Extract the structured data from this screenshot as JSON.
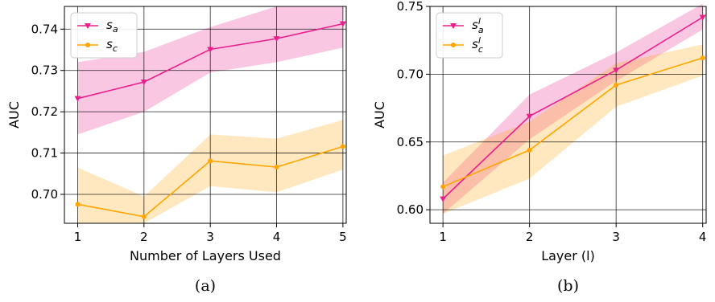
{
  "chart_data": [
    {
      "type": "line",
      "caption": "(a)",
      "xlabel": "Number of Layers Used",
      "ylabel": "AUC",
      "x": [
        1,
        2,
        3,
        4,
        5
      ],
      "xticks": [
        "1",
        "2",
        "3",
        "4",
        "5"
      ],
      "yticks": [
        "0.70",
        "0.71",
        "0.72",
        "0.73",
        "0.74"
      ],
      "xlim": [
        0.8,
        5.05
      ],
      "ylim": [
        0.693,
        0.7455
      ],
      "grid": true,
      "legend_position": "top-left",
      "series": [
        {
          "name": "s_a",
          "name_base": "s",
          "name_sub": "a",
          "name_sup": "",
          "color": "#e91e8c",
          "marker": "triangle-down",
          "values": [
            0.7232,
            0.7272,
            0.7351,
            0.7377,
            0.7413
          ],
          "band_low": [
            0.7145,
            0.72,
            0.7295,
            0.732,
            0.7355
          ],
          "band_high": [
            0.732,
            0.7345,
            0.7405,
            0.7455,
            0.7455
          ]
        },
        {
          "name": "s_c",
          "name_base": "s",
          "name_sub": "c",
          "name_sup": "",
          "color": "#ffa500",
          "marker": "circle",
          "values": [
            0.6976,
            0.6946,
            0.7081,
            0.7066,
            0.7116
          ],
          "band_low": [
            0.693,
            0.693,
            0.702,
            0.7005,
            0.706
          ],
          "band_high": [
            0.7065,
            0.6995,
            0.7145,
            0.7135,
            0.718
          ]
        }
      ]
    },
    {
      "type": "line",
      "caption": "(b)",
      "xlabel": "Layer (l)",
      "ylabel": "AUC",
      "x": [
        1,
        2,
        3,
        4
      ],
      "xticks": [
        "1",
        "2",
        "3",
        "4"
      ],
      "yticks": [
        "0.60",
        "0.65",
        "0.70",
        "0.75"
      ],
      "xlim": [
        0.85,
        4.04
      ],
      "ylim": [
        0.59,
        0.75
      ],
      "grid": true,
      "legend_position": "top-left",
      "series": [
        {
          "name": "s_a^l",
          "name_base": "s",
          "name_sub": "a",
          "name_sup": "l",
          "color": "#e91e8c",
          "marker": "triangle-down",
          "values": [
            0.608,
            0.669,
            0.703,
            0.742
          ],
          "band_low": [
            0.597,
            0.652,
            0.695,
            0.733
          ],
          "band_high": [
            0.62,
            0.685,
            0.716,
            0.752
          ]
        },
        {
          "name": "s_c^l",
          "name_base": "s",
          "name_sub": "c",
          "name_sup": "l",
          "color": "#ffa500",
          "marker": "circle",
          "values": [
            0.617,
            0.644,
            0.692,
            0.712
          ],
          "band_low": [
            0.597,
            0.623,
            0.676,
            0.699
          ],
          "band_high": [
            0.64,
            0.665,
            0.708,
            0.722
          ]
        }
      ]
    }
  ]
}
